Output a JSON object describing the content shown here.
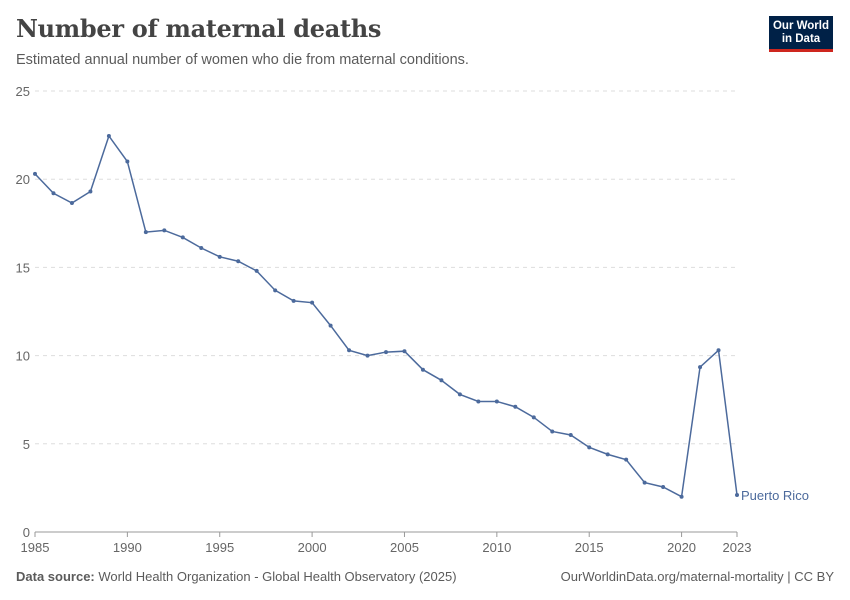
{
  "header": {
    "title": "Number of maternal deaths",
    "subtitle": "Estimated annual number of women who die from maternal conditions.",
    "logo": "Our World in Data"
  },
  "footer": {
    "source_label": "Data source:",
    "source": "World Health Organization - Global Health Observatory (2025)",
    "url": "OurWorldinData.org/maternal-mortality | CC BY"
  },
  "colors": {
    "series": "#4c6a9c"
  },
  "chart_data": {
    "type": "line",
    "title": "Number of maternal deaths",
    "xlim": [
      1985,
      2023
    ],
    "ylim": [
      0,
      25
    ],
    "grid": "horizontal dashed",
    "x_ticks": [
      "1985",
      "1990",
      "1995",
      "2000",
      "2005",
      "2010",
      "2015",
      "2020",
      "2023"
    ],
    "y_ticks": [
      "0",
      "5",
      "10",
      "15",
      "20",
      "25"
    ],
    "series": [
      {
        "name": "Puerto Rico",
        "x": [
          1985,
          1986,
          1987,
          1988,
          1989,
          1990,
          1991,
          1992,
          1993,
          1994,
          1995,
          1996,
          1997,
          1998,
          1999,
          2000,
          2001,
          2002,
          2003,
          2004,
          2005,
          2006,
          2007,
          2008,
          2009,
          2010,
          2011,
          2012,
          2013,
          2014,
          2015,
          2016,
          2017,
          2018,
          2019,
          2020,
          2021,
          2022,
          2023
        ],
        "values": [
          20.3,
          19.2,
          18.65,
          19.3,
          22.45,
          21.0,
          17.0,
          17.1,
          16.7,
          16.1,
          15.6,
          15.35,
          14.8,
          13.7,
          13.1,
          13.0,
          11.7,
          10.3,
          10.0,
          10.2,
          10.25,
          9.2,
          8.6,
          7.8,
          7.4,
          7.4,
          7.1,
          6.5,
          5.7,
          5.5,
          4.8,
          4.4,
          4.1,
          2.8,
          2.55,
          2.0,
          9.35,
          10.3,
          2.1
        ]
      }
    ]
  }
}
